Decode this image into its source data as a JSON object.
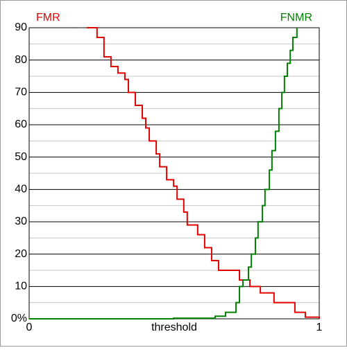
{
  "chart_data": {
    "type": "step",
    "xlabel": "threshold",
    "xlim": [
      0,
      1
    ],
    "xticks": [
      0,
      1
    ],
    "ylim": [
      0,
      90
    ],
    "yticks": [
      {
        "value": 0,
        "label": "0%"
      },
      10,
      20,
      30,
      40,
      50,
      60,
      70,
      80,
      90
    ],
    "minor_yticks": [
      5,
      15,
      25,
      35,
      45,
      55,
      65,
      75,
      85
    ],
    "grid": true,
    "series": [
      {
        "name": "FMR",
        "color": "#e00000",
        "x": [
          0.199,
          0.234,
          0.258,
          0.282,
          0.306,
          0.33,
          0.342,
          0.366,
          0.39,
          0.402,
          0.414,
          0.438,
          0.45,
          0.474,
          0.498,
          0.51,
          0.533,
          0.545,
          0.581,
          0.605,
          0.629,
          0.653,
          0.701,
          0.725,
          0.761,
          0.797,
          0.844,
          0.916,
          0.952,
          1.0
        ],
        "values": [
          90,
          87,
          81,
          78,
          76,
          74,
          70,
          66,
          62,
          59,
          55,
          51,
          47,
          43,
          41,
          37,
          33,
          29,
          26,
          22,
          18,
          15,
          15,
          12,
          10,
          8,
          5,
          2,
          0.5,
          0
        ]
      },
      {
        "name": "FNMR",
        "color": "#008000",
        "x": [
          0,
          0.498,
          0.641,
          0.677,
          0.713,
          0.725,
          0.737,
          0.756,
          0.766,
          0.78,
          0.789,
          0.804,
          0.813,
          0.828,
          0.837,
          0.849,
          0.861,
          0.871,
          0.88,
          0.89,
          0.9,
          0.909,
          0.923
        ],
        "values": [
          0,
          0.2,
          0.8,
          2,
          5,
          10,
          12,
          16,
          20,
          25,
          30,
          35,
          40,
          46,
          52,
          58,
          65,
          70,
          75,
          79,
          83,
          87,
          90
        ]
      }
    ]
  }
}
